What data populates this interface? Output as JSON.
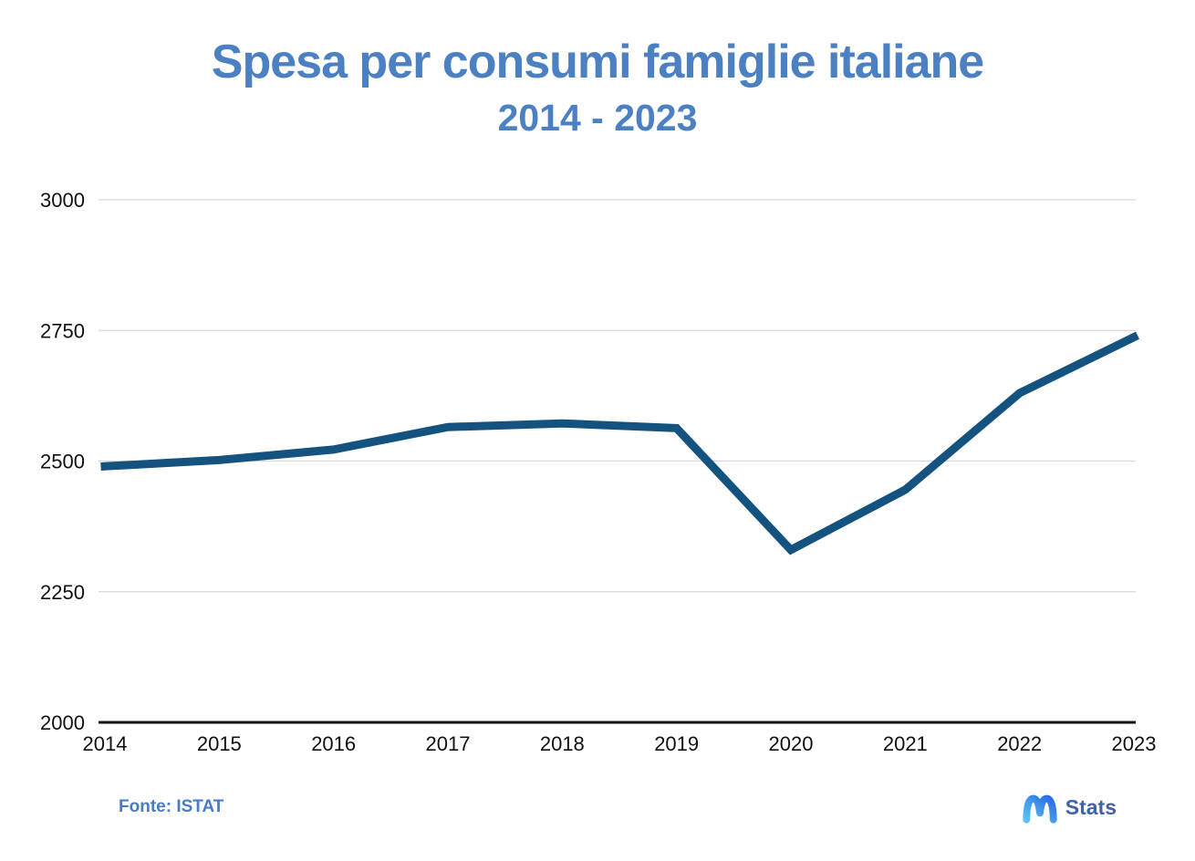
{
  "header": {
    "title": "Spesa per consumi famiglie italiane",
    "subtitle": "2014 - 2023"
  },
  "footer": {
    "source_label": "Fonte: ISTAT",
    "logo_text": "Stats"
  },
  "colors": {
    "title_blue": "#4b80c2",
    "line_navy": "#14537f",
    "grid_gray": "#d8d8d8",
    "axis_black": "#111111",
    "tick_text": "#111111",
    "logo_gradient_start": "#59c2f2",
    "logo_gradient_end": "#2a6be5",
    "logo_text_blue": "#3f62ab"
  },
  "chart_data": {
    "type": "line",
    "title": "Spesa per consumi famiglie italiane",
    "subtitle": "2014 - 2023",
    "x": [
      2014,
      2015,
      2016,
      2017,
      2018,
      2019,
      2020,
      2021,
      2022,
      2023
    ],
    "values": [
      2490,
      2502,
      2522,
      2565,
      2572,
      2563,
      2330,
      2445,
      2630,
      2737
    ],
    "ylim": [
      2000,
      3000
    ],
    "yticks": [
      2000,
      2250,
      2500,
      2750,
      3000
    ],
    "grid": true,
    "legend": false
  }
}
